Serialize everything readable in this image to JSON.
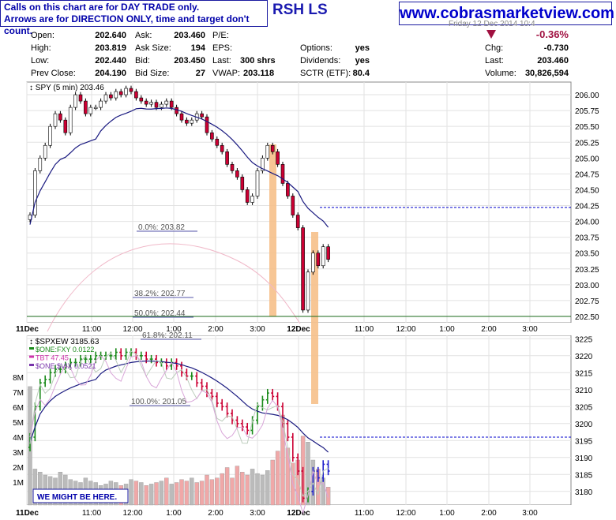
{
  "header": {
    "note_line1": "Calls on this chart are for DAY TRADE only.",
    "note_line2": "Arrows are for DIRECTION ONLY, time and target don't count.",
    "ticker_fragment": "RSH LS",
    "website": "www.cobrasmarketview.com",
    "date_partial": "Friday 12 Dec 2014 10:4"
  },
  "quote": {
    "open_label": "Open:",
    "open": "202.640",
    "high_label": "High:",
    "high": "203.819",
    "low_label": "Low:",
    "low": "202.440",
    "prevclose_label": "Prev Close:",
    "prevclose": "204.190",
    "ask_label": "Ask:",
    "ask": "203.460",
    "asksize_label": "Ask Size:",
    "asksize": "194",
    "bid_label": "Bid:",
    "bid": "203.450",
    "bidsize_label": "Bid Size:",
    "bidsize": "27",
    "pe_label": "P/E:",
    "eps_label": "EPS:",
    "last_label": "Last:",
    "last_val": "300 shrs",
    "vwap_label": "VWAP:",
    "vwap": "203.118",
    "options_label": "Options:",
    "options": "yes",
    "dividends_label": "Dividends:",
    "dividends": "yes",
    "sctr_label": "SCTR (ETF):",
    "sctr": "80.4",
    "pct_change": "-0.36%",
    "chg_label": "Chg:",
    "chg": "-0.730",
    "last2_label": "Last:",
    "last2": "203.460",
    "volume_label": "Volume:",
    "volume": "30,826,594"
  },
  "colors": {
    "up": "#ffffff",
    "down": "#cc0033",
    "orange_bar": "#f6c08a",
    "ma": "#1a1a80",
    "green_line": "#1a6a1a",
    "blue_dash": "#0000cc"
  },
  "chart_data": [
    {
      "type": "candlestick",
      "title": "SPY (5 min) 203.46",
      "ylim": [
        202.4,
        206.2
      ],
      "yticks": [
        "206.00",
        "205.75",
        "205.50",
        "205.25",
        "205.00",
        "204.75",
        "204.50",
        "204.25",
        "204.00",
        "203.75",
        "203.50",
        "203.25",
        "203.00",
        "202.75",
        "202.50"
      ],
      "xticks": [
        "11Dec",
        "11:00",
        "12:00",
        "1:00",
        "2:00",
        "3:00",
        "12Dec",
        "11:00",
        "12:00",
        "1:00",
        "2:00",
        "3:00"
      ],
      "fib_labels": [
        {
          "text": "0.0%: 203.82",
          "value": 203.82
        },
        {
          "text": "38.2%: 202.77",
          "value": 202.77
        },
        {
          "text": "50.0%: 202.44",
          "value": 202.44
        }
      ],
      "reference_levels": [
        204.22,
        202.5
      ],
      "closes": [
        204.1,
        204.8,
        205.0,
        205.2,
        205.5,
        205.7,
        205.6,
        205.4,
        205.8,
        206.0,
        205.9,
        205.7,
        205.8,
        205.8,
        205.9,
        206.0,
        205.95,
        206.05,
        206.0,
        206.1,
        206.05,
        205.95,
        205.9,
        205.85,
        205.88,
        205.8,
        205.85,
        205.9,
        205.8,
        205.7,
        205.6,
        205.55,
        205.6,
        205.7,
        205.65,
        205.4,
        205.3,
        205.2,
        205.1,
        204.9,
        204.8,
        204.7,
        204.5,
        204.3,
        204.4,
        204.8,
        205.0,
        205.2,
        205.1,
        204.9,
        204.6,
        204.4,
        204.1,
        203.9,
        202.6,
        203.2,
        203.5,
        203.3,
        203.6,
        203.4
      ]
    },
    {
      "type": "candlestick",
      "title": "$SPXEW 3185.63",
      "ylim": [
        3176,
        3226
      ],
      "yticks": [
        "3225",
        "3220",
        "3215",
        "3210",
        "3205",
        "3200",
        "3195",
        "3190",
        "3185",
        "3180"
      ],
      "volume_ticks": [
        "8M",
        "7M",
        "6M",
        "5M",
        "4M",
        "3M",
        "2M",
        "1M"
      ],
      "legend": [
        {
          "name": "$SPXEW 3185.63",
          "color": "#000000"
        },
        {
          "name": "$ONE:FXY 0.0122",
          "color": "#1a8a1a"
        },
        {
          "name": "TBT 47.45",
          "color": "#cc33aa"
        },
        {
          "name": "$ONE:$VIX 0.0521",
          "color": "#7733aa"
        }
      ],
      "fib_labels": [
        {
          "text": "61.8%: 202.11",
          "value": 202.11
        },
        {
          "text": "100.0%: 201.05",
          "value": 201.05
        }
      ],
      "reference_levels": [
        3196
      ],
      "closes": [
        3196,
        3205,
        3212,
        3213,
        3215,
        3216,
        3216,
        3217,
        3218,
        3218,
        3219,
        3219,
        3219,
        3220,
        3220,
        3220,
        3220,
        3221,
        3220,
        3221,
        3221,
        3220,
        3220,
        3219,
        3219,
        3218,
        3218,
        3217,
        3218,
        3217,
        3215,
        3214,
        3214,
        3212,
        3211,
        3209,
        3208,
        3206,
        3205,
        3203,
        3201,
        3200,
        3199,
        3198,
        3201,
        3205,
        3207,
        3209,
        3208,
        3205,
        3200,
        3196,
        3190,
        3186,
        3178,
        3180,
        3186,
        3184,
        3188,
        3186
      ],
      "volumes": [
        7.9,
        2.4,
        2.2,
        2.0,
        1.9,
        1.8,
        2.2,
        2.0,
        1.7,
        1.6,
        1.5,
        1.8,
        1.6,
        1.5,
        1.3,
        1.4,
        1.6,
        1.5,
        1.3,
        1.4,
        1.7,
        1.6,
        1.5,
        1.3,
        1.4,
        1.5,
        1.6,
        1.8,
        1.4,
        1.5,
        1.7,
        1.6,
        1.8,
        1.5,
        1.6,
        2.0,
        1.7,
        1.8,
        2.1,
        2.5,
        1.8,
        2.6,
        2.2,
        2.0,
        2.4,
        2.1,
        2.0,
        2.3,
        3.0,
        3.6,
        6.0,
        3.8,
        2.8,
        3.0,
        4.6,
        4.2,
        3.0,
        2.4,
        1.8,
        1.2
      ],
      "annotation": "WE MIGHT BE HERE."
    }
  ]
}
